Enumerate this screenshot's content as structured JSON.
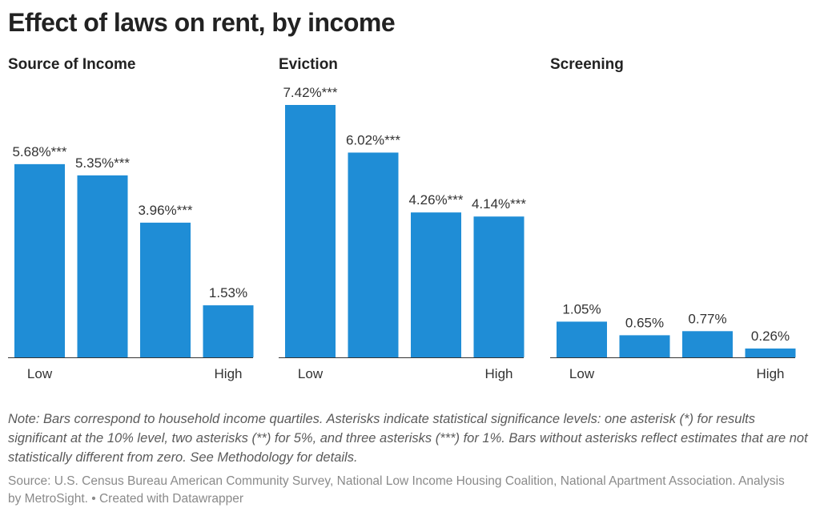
{
  "title": "Effect of laws on rent, by income",
  "note": "Note: Bars correspond to household income quartiles. Asterisks indicate statistical significance levels: one asterisk (*) for results significant at the 10% level, two asterisks (**) for 5%, and three asterisks (***) for 1%. Bars without asterisks reflect estimates that are not statistically different from zero. See Methodology for details.",
  "source": "Source: U.S. Census Bureau American Community Survey, National Low Income Housing Coalition, National Apartment Association. Analysis by MetroSight. • Created with Datawrapper",
  "chart_data": [
    {
      "type": "bar",
      "title": "Source of Income",
      "categories": [
        "Low",
        null,
        null,
        "High"
      ],
      "values": [
        5.68,
        5.35,
        3.96,
        1.53
      ],
      "value_labels": [
        "5.68%***",
        "5.35%***",
        "3.96%***",
        "1.53%"
      ],
      "color": "#1f8dd6"
    },
    {
      "type": "bar",
      "title": "Eviction",
      "categories": [
        "Low",
        null,
        null,
        "High"
      ],
      "values": [
        7.42,
        6.02,
        4.26,
        4.14
      ],
      "value_labels": [
        "7.42%***",
        "6.02%***",
        "4.26%***",
        "4.14%***"
      ],
      "color": "#1f8dd6"
    },
    {
      "type": "bar",
      "title": "Screening",
      "categories": [
        "Low",
        null,
        null,
        "High"
      ],
      "values": [
        1.05,
        0.65,
        0.77,
        0.26
      ],
      "value_labels": [
        "1.05%",
        "0.65%",
        "0.77%",
        "0.26%"
      ],
      "color": "#1f8dd6"
    }
  ]
}
